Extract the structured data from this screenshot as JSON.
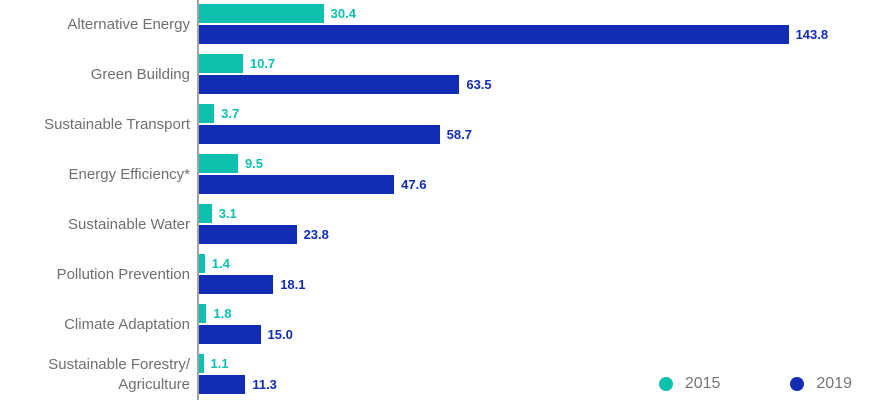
{
  "chart_data": {
    "type": "bar",
    "orientation": "horizontal",
    "title": "",
    "xlabel": "",
    "ylabel": "",
    "xlim": [
      0,
      160
    ],
    "grid": false,
    "value_labels_shown": true,
    "categories": [
      "Alternative Energy",
      "Green Building",
      "Sustainable Transport",
      "Energy Efficiency*",
      "Sustainable Water",
      "Pollution Prevention",
      "Climate Adaptation",
      "Sustainable Forestry/\nAgriculture"
    ],
    "series": [
      {
        "name": "2015",
        "color": "#0dc0ae",
        "values": [
          30.4,
          10.7,
          3.7,
          9.5,
          3.1,
          1.4,
          1.8,
          1.1
        ],
        "labels": [
          "30.4",
          "10.7",
          "3.7",
          "9.5",
          "3.1",
          "1.4",
          "1.8",
          "1.1"
        ]
      },
      {
        "name": "2019",
        "color": "#122db4",
        "values": [
          143.8,
          63.5,
          58.7,
          47.6,
          23.8,
          18.1,
          15.0,
          11.3
        ],
        "labels": [
          "143.8",
          "63.5",
          "58.7",
          "47.6",
          "23.8",
          "18.1",
          "15.0",
          "11.3"
        ]
      }
    ],
    "legend": {
      "position": "bottom-right",
      "items": [
        {
          "label": "2015",
          "color": "#0dc0ae"
        },
        {
          "label": "2019",
          "color": "#122db4"
        }
      ]
    },
    "colors": {
      "category_label": "#6f6f6f",
      "axis_line": "#a2a2a2",
      "background": "#ffffff"
    }
  }
}
